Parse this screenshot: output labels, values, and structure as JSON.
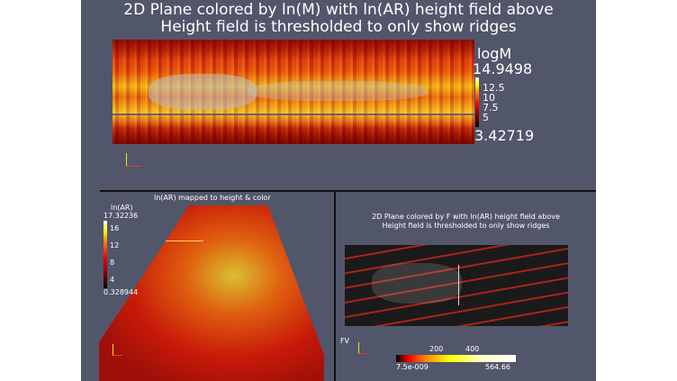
{
  "top_view": {
    "title_line1": "2D Plane colored by ln(M) with ln(AR) height field above",
    "title_line2": "Height field is thresholded to only show ridges",
    "colorbar": {
      "title": "logM",
      "max": "14.9498",
      "min": "3.42719",
      "ticks": [
        "12.5",
        "10",
        "7.5",
        "5"
      ]
    }
  },
  "bottom_left_view": {
    "title": "ln(AR) mapped to height & color",
    "colorbar": {
      "title": "ln(AR)",
      "max": "17.32236",
      "min": "0.328944",
      "ticks": [
        "16",
        "12",
        "8",
        "4"
      ]
    }
  },
  "bottom_right_view": {
    "title_line1": "2D Plane colored by F with ln(AR) height field above",
    "title_line2": "Height field is thresholded to only show ridges",
    "colorbar": {
      "title": "FV",
      "min": "7.5e-009",
      "max": "564.66",
      "ticks": [
        "200",
        "400"
      ]
    }
  },
  "axes": {
    "x": "x",
    "y": "y",
    "z": "z"
  },
  "colormap": [
    "#000000",
    "#e00000",
    "#ff8000",
    "#ffff00",
    "#ffffff"
  ]
}
